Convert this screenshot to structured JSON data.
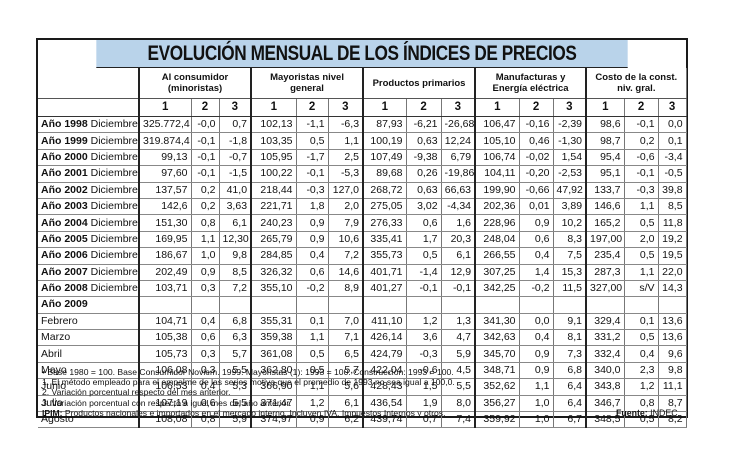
{
  "title": "EVOLUCIÓN MENSUAL DE LOS ÍNDICES DE PRECIOS",
  "groups": [
    "Al consumidor (minoristas)",
    "Mayoristas nivel general",
    "Productos primarios",
    "Manufacturas y Energía eléctrica",
    "Costo de la const. niv. gral."
  ],
  "subcols": [
    "1",
    "2",
    "3"
  ],
  "rows": [
    {
      "label_bold": "Año 1998",
      "label": " Diciembre",
      "values": [
        "325.772,4",
        "-0,0",
        "0,7",
        "102,13",
        "-1,1",
        "-6,3",
        "87,93",
        "-6,21",
        "-26,68",
        "106,47",
        "-0,16",
        "-2,39",
        "98,6",
        "-0,1",
        "0,0"
      ]
    },
    {
      "label_bold": "Año 1999",
      "label": " Diciembre",
      "values": [
        "319.874,4",
        "-0,1",
        "-1,8",
        "103,35",
        "0,5",
        "1,1",
        "100,19",
        "0,63",
        "12,24",
        "105,10",
        "0,46",
        "-1,30",
        "98,7",
        "0,2",
        "0,1"
      ]
    },
    {
      "label_bold": "Año 2000",
      "label": " Diciembre",
      "values": [
        "99,13",
        "-0,1",
        "-0,7",
        "105,95",
        "-1,7",
        "2,5",
        "107,49",
        "-9,38",
        "6,79",
        "106,74",
        "-0,02",
        "1,54",
        "95,4",
        "-0,6",
        "-3,4"
      ]
    },
    {
      "label_bold": "Año 2001",
      "label": " Diciembre",
      "values": [
        "97,60",
        "-0,1",
        "-1,5",
        "100,22",
        "-0,1",
        "-5,3",
        "89,68",
        "0,26",
        "-19,86",
        "104,11",
        "-0,20",
        "-2,53",
        "95,1",
        "-0,1",
        "-0,5"
      ]
    },
    {
      "label_bold": "Año 2002",
      "label": " Diciembre",
      "values": [
        "137,57",
        "0,2",
        "41,0",
        "218,44",
        "-0,3",
        "127,0",
        "268,72",
        "0,63",
        "66,63",
        "199,90",
        "-0,66",
        "47,92",
        "133,7",
        "-0,3",
        "39,8"
      ]
    },
    {
      "label_bold": "Año 2003",
      "label": " Diciembre",
      "values": [
        "142,6",
        "0,2",
        "3,63",
        "221,71",
        "1,8",
        "2,0",
        "275,05",
        "3,02",
        "-4,34",
        "202,36",
        "0,01",
        "3,89",
        "146,6",
        "1,1",
        "8,5"
      ]
    },
    {
      "label_bold": "Año 2004",
      "label": " Diciembre",
      "values": [
        "151,30",
        "0,8",
        "6,1",
        "240,23",
        "0,9",
        "7,9",
        "276,33",
        "0,6",
        "1,6",
        "228,96",
        "0,9",
        "10,2",
        "165,2",
        "0,5",
        "11,8"
      ]
    },
    {
      "label_bold": "Año 2005",
      "label": " Diciembre",
      "values": [
        "169,95",
        "1,1",
        "12,30",
        "265,79",
        "0,9",
        "10,6",
        "335,41",
        "1,7",
        "20,3",
        "248,04",
        "0,6",
        "8,3",
        "197,00",
        "2,0",
        "19,2"
      ]
    },
    {
      "label_bold": "Año 2006",
      "label": " Diciembre",
      "values": [
        "186,67",
        "1,0",
        "9,8",
        "284,85",
        "0,4",
        "7,2",
        "355,73",
        "0,5",
        "6,1",
        "266,55",
        "0,4",
        "7,5",
        "235,4",
        "0,5",
        "19,5"
      ]
    },
    {
      "label_bold": "Año 2007",
      "label": " Diciembre",
      "values": [
        "202,49",
        "0,9",
        "8,5",
        "326,32",
        "0,6",
        "14,6",
        "401,71",
        "-1,4",
        "12,9",
        "307,25",
        "1,4",
        "15,3",
        "287,3",
        "1,1",
        "22,0"
      ]
    },
    {
      "label_bold": "Año 2008",
      "label": " Diciembre",
      "values": [
        "103,71",
        "0,3",
        "7,2",
        "355,10",
        "-0,2",
        "8,9",
        "401,27",
        "-0,1",
        "-0,1",
        "342,25",
        "-0,2",
        "11,5",
        "327,00",
        "s/V",
        "14,3"
      ]
    },
    {
      "label_bold": "Año 2009",
      "label": "",
      "values": [
        "",
        "",
        "",
        "",
        "",
        "",
        "",
        "",
        "",
        "",
        "",
        "",
        "",
        "",
        ""
      ]
    },
    {
      "label_bold": "",
      "label": "Febrero",
      "values": [
        "104,71",
        "0,4",
        "6,8",
        "355,31",
        "0,1",
        "7,0",
        "411,10",
        "1,2",
        "1,3",
        "341,30",
        "0,0",
        "9,1",
        "329,4",
        "0,1",
        "13,6"
      ]
    },
    {
      "label_bold": "",
      "label": "Marzo",
      "values": [
        "105,38",
        "0,6",
        "6,3",
        "359,38",
        "1,1",
        "7,1",
        "426,14",
        "3,6",
        "4,7",
        "342,63",
        "0,4",
        "8,1",
        "331,2",
        "0,5",
        "13,6"
      ]
    },
    {
      "label_bold": "",
      "label": "Abril",
      "values": [
        "105,73",
        "0,3",
        "5,7",
        "361,08",
        "0,5",
        "6,5",
        "424,79",
        "-0,3",
        "5,9",
        "345,70",
        "0,9",
        "7,3",
        "332,4",
        "0,4",
        "9,6"
      ]
    },
    {
      "label_bold": "",
      "label": "Mayo",
      "values": [
        "106,08",
        "0,3",
        "5,5",
        "362,80",
        "0,5",
        "5,7",
        "422,04",
        "-0,6",
        "4,5",
        "348,71",
        "0,9",
        "6,8",
        "340,0",
        "2,3",
        "9,8"
      ]
    },
    {
      "label_bold": "",
      "label": "Junio",
      "values": [
        "106,53",
        "0,4",
        "5,3",
        "366,90",
        "1,1",
        "5,6",
        "428,43",
        "1,5",
        "5,5",
        "352,62",
        "1,1",
        "6,4",
        "343,8",
        "1,2",
        "11,1"
      ]
    },
    {
      "label_bold": "",
      "label": "Julio",
      "values": [
        "107,19",
        "0,6",
        "5,5",
        "371,47",
        "1,2",
        "6,1",
        "436,54",
        "1,9",
        "8,0",
        "356,27",
        "1,0",
        "6,4",
        "346,7",
        "0,8",
        "8,7"
      ]
    },
    {
      "label_bold": "",
      "label": "Agosto",
      "values": [
        "108,08",
        "0,8",
        "5,9",
        "374,97",
        "0,9",
        "6,2",
        "439,74",
        "0,7",
        "7,4",
        "359,92",
        "1,0",
        "6,7",
        "348,5",
        "0,5",
        "8,2"
      ]
    }
  ],
  "notes": {
    "n0": "• Base 1980 = 100. Base Consumidor Noviem. 1999. Mayoristas (1): 1993 = 100. Construcción: 1993 = 100.",
    "n1": "1. El método empleado para el empalme de las series motiva que el promedio de 1993 no sea igual a 100,0.",
    "n2": "2. Variación porcentual respecto del mes anterior.",
    "n3": "3. Variación porcentual con respecto a igual mes del año anterior.",
    "ipim_label": "IPIM:",
    "ipim_text": " Productos nacionales e importados en el mercado interno. Incluyen IVA, Impuestos Internos y otros.",
    "source_label": "Fuente:",
    "source_text": " INDEC."
  }
}
